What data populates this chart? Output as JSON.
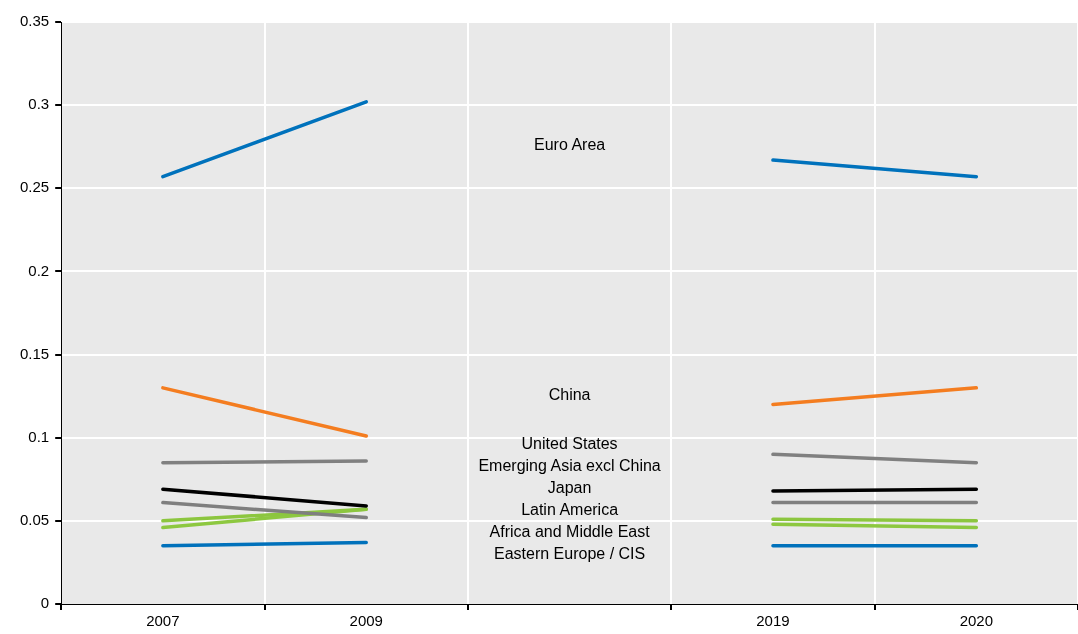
{
  "chart_data": {
    "type": "line",
    "categories": [
      "2007",
      "2009",
      null,
      "2019",
      "2020"
    ],
    "ylim": [
      0,
      0.35
    ],
    "yticks": [
      0,
      0.05,
      0.1,
      0.15,
      0.2,
      0.25,
      0.3,
      0.35
    ],
    "grid": true,
    "legend": false,
    "marker": "none",
    "line_style": "solid",
    "series": [
      {
        "color": "#0072bc",
        "values": [
          0.257,
          0.302,
          null,
          0.267,
          0.257
        ]
      },
      {
        "color": "#f47d20",
        "values": [
          0.13,
          0.101,
          null,
          0.12,
          0.13
        ]
      },
      {
        "color": "#808080",
        "values": [
          0.085,
          0.086,
          null,
          0.09,
          0.085
        ]
      },
      {
        "color": "#000000",
        "values": [
          0.069,
          0.059,
          null,
          0.068,
          0.069
        ]
      },
      {
        "color": "#7f7f7f",
        "values": [
          0.061,
          0.052,
          null,
          0.061,
          0.061
        ]
      },
      {
        "color": "#8cc63f",
        "values": [
          0.05,
          0.057,
          null,
          0.051,
          0.05
        ]
      },
      {
        "color": "#8dc840",
        "values": [
          0.046,
          0.057,
          null,
          0.048,
          0.046
        ]
      },
      {
        "color": "#0071bb",
        "values": [
          0.035,
          0.037,
          null,
          0.035,
          0.035
        ]
      }
    ],
    "annotations": [
      "Euro Area",
      "China",
      "United States",
      "Emerging Asia excl China",
      "Japan",
      "Latin America",
      "Africa and Middle East",
      "Eastern Europe / CIS"
    ]
  }
}
